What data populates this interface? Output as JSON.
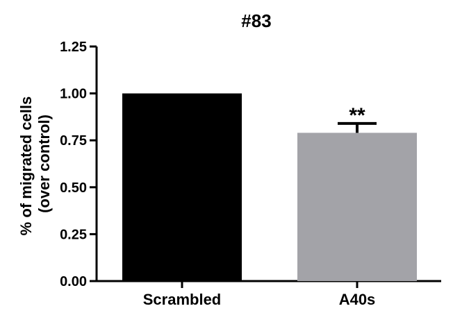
{
  "chart_data": {
    "type": "bar",
    "title": "#83",
    "ylabel_line1": "% of migrated cells",
    "ylabel_line2": "(over control)",
    "xlabel": "",
    "categories": [
      "Scrambled",
      "A40s"
    ],
    "values": [
      1.0,
      0.79
    ],
    "errors": [
      0.0,
      0.05
    ],
    "annotations": [
      "",
      "**"
    ],
    "bar_colors": [
      "#000000",
      "#a3a3a8"
    ],
    "ylim": [
      0,
      1.25
    ],
    "yticks": [
      "0.00",
      "0.25",
      "0.50",
      "0.75",
      "1.00",
      "1.25"
    ],
    "ytick_values": [
      0,
      0.25,
      0.5,
      0.75,
      1.0,
      1.25
    ],
    "grid": false,
    "legend": "none"
  }
}
